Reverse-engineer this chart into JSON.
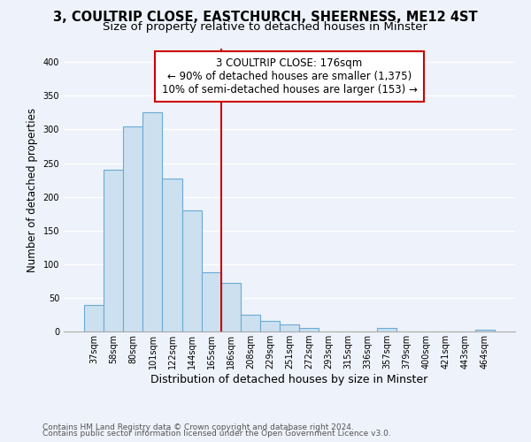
{
  "title": "3, COULTRIP CLOSE, EASTCHURCH, SHEERNESS, ME12 4ST",
  "subtitle": "Size of property relative to detached houses in Minster",
  "xlabel": "Distribution of detached houses by size in Minster",
  "ylabel": "Number of detached properties",
  "bar_labels": [
    "37sqm",
    "58sqm",
    "80sqm",
    "101sqm",
    "122sqm",
    "144sqm",
    "165sqm",
    "186sqm",
    "208sqm",
    "229sqm",
    "251sqm",
    "272sqm",
    "293sqm",
    "315sqm",
    "336sqm",
    "357sqm",
    "379sqm",
    "400sqm",
    "421sqm",
    "443sqm",
    "464sqm"
  ],
  "bar_heights": [
    40,
    240,
    305,
    325,
    227,
    180,
    88,
    72,
    25,
    16,
    10,
    5,
    0,
    0,
    0,
    5,
    0,
    0,
    0,
    0,
    3
  ],
  "bar_color": "#cce0f0",
  "bar_edge_color": "#6aaad4",
  "vline_color": "#cc0000",
  "annotation_title": "3 COULTRIP CLOSE: 176sqm",
  "annotation_line2": "← 90% of detached houses are smaller (1,375)",
  "annotation_line3": "10% of semi-detached houses are larger (153) →",
  "annotation_box_color": "#ffffff",
  "annotation_box_edge": "#cc0000",
  "ylim": [
    0,
    420
  ],
  "yticks": [
    0,
    50,
    100,
    150,
    200,
    250,
    300,
    350,
    400
  ],
  "footer1": "Contains HM Land Registry data © Crown copyright and database right 2024.",
  "footer2": "Contains public sector information licensed under the Open Government Licence v3.0.",
  "bg_color": "#eef2fa",
  "plot_bg_color": "#eef2fa",
  "grid_color": "#ffffff",
  "title_fontsize": 10.5,
  "subtitle_fontsize": 9.5,
  "tick_fontsize": 7,
  "ylabel_fontsize": 8.5,
  "xlabel_fontsize": 9,
  "annotation_fontsize": 8.5,
  "footer_fontsize": 6.5
}
